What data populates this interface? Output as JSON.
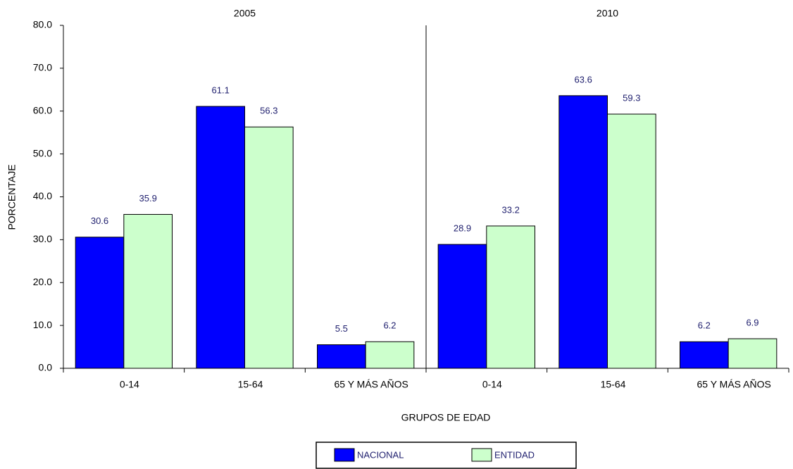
{
  "chart_data": {
    "type": "bar",
    "panels": [
      "2005",
      "2010"
    ],
    "categories": [
      "0-14",
      "15-64",
      "65 Y MÁS AÑOS",
      "0-14",
      "15-64",
      "65 Y MÁS AÑOS"
    ],
    "series": [
      {
        "name": "NACIONAL",
        "color": "#0000ff",
        "values": [
          30.6,
          61.1,
          5.5,
          28.9,
          63.6,
          6.2
        ]
      },
      {
        "name": "ENTIDAD",
        "color": "#ccffcc",
        "values": [
          35.9,
          56.3,
          6.2,
          33.2,
          59.3,
          6.9
        ]
      }
    ],
    "y_label": "PORCENTAJE",
    "x_label": "GRUPOS DE EDAD",
    "ylim": [
      0,
      80
    ],
    "yticks": [
      {
        "value": 0,
        "label": "0.0"
      },
      {
        "value": 10,
        "label": "10.0"
      },
      {
        "value": 20,
        "label": "20.0"
      },
      {
        "value": 30,
        "label": "30.0"
      },
      {
        "value": 40,
        "label": "40.0"
      },
      {
        "value": 50,
        "label": "50.0"
      },
      {
        "value": 60,
        "label": "60.0"
      },
      {
        "value": 70,
        "label": "70.0"
      },
      {
        "value": 80,
        "label": "80.0"
      }
    ],
    "legend": "bottom"
  }
}
